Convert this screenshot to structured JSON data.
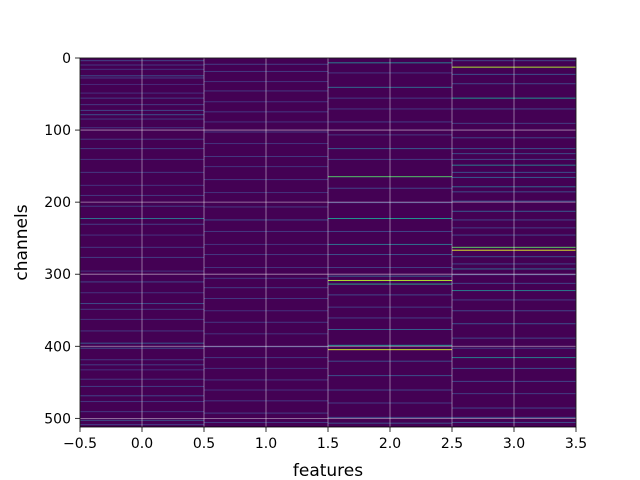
{
  "chart_data": {
    "type": "heatmap",
    "xlabel": "features",
    "ylabel": "channels",
    "xlim": [
      -0.5,
      3.5
    ],
    "ylim": [
      512,
      0
    ],
    "x_ticks": [
      "−0.5",
      "0.0",
      "0.5",
      "1.0",
      "1.5",
      "2.0",
      "2.5",
      "3.0",
      "3.5"
    ],
    "y_ticks": [
      "0",
      "100",
      "200",
      "300",
      "400",
      "500"
    ],
    "grid": true,
    "colormap": "viridis",
    "n_channels": 512,
    "columns": [
      {
        "feature": 0,
        "bright_rows": [
          [
            3,
            0.25
          ],
          [
            9,
            0.2
          ],
          [
            15,
            0.18
          ],
          [
            24,
            0.3
          ],
          [
            27,
            0.22
          ],
          [
            36,
            0.15
          ],
          [
            48,
            0.18
          ],
          [
            55,
            0.22
          ],
          [
            64,
            0.2
          ],
          [
            72,
            0.25
          ],
          [
            78,
            0.3
          ],
          [
            84,
            0.2
          ],
          [
            96,
            0.18
          ],
          [
            112,
            0.2
          ],
          [
            125,
            0.22
          ],
          [
            140,
            0.18
          ],
          [
            158,
            0.2
          ],
          [
            176,
            0.18
          ],
          [
            190,
            0.2
          ],
          [
            205,
            0.22
          ],
          [
            222,
            0.42
          ],
          [
            230,
            0.22
          ],
          [
            245,
            0.18
          ],
          [
            262,
            0.2
          ],
          [
            276,
            0.22
          ],
          [
            295,
            0.18
          ],
          [
            310,
            0.25
          ],
          [
            325,
            0.18
          ],
          [
            340,
            0.28
          ],
          [
            348,
            0.2
          ],
          [
            362,
            0.18
          ],
          [
            378,
            0.2
          ],
          [
            395,
            0.35
          ],
          [
            402,
            0.3
          ],
          [
            418,
            0.2
          ],
          [
            425,
            0.22
          ],
          [
            432,
            0.18
          ],
          [
            445,
            0.2
          ],
          [
            455,
            0.22
          ],
          [
            468,
            0.25
          ],
          [
            476,
            0.2
          ],
          [
            490,
            0.2
          ],
          [
            502,
            0.32
          ],
          [
            508,
            0.22
          ]
        ]
      },
      {
        "feature": 1,
        "bright_rows": [
          [
            8,
            0.22
          ],
          [
            18,
            0.2
          ],
          [
            32,
            0.18
          ],
          [
            45,
            0.2
          ],
          [
            60,
            0.18
          ],
          [
            74,
            0.2
          ],
          [
            88,
            0.18
          ],
          [
            102,
            0.2
          ],
          [
            118,
            0.18
          ],
          [
            136,
            0.2
          ],
          [
            150,
            0.18
          ],
          [
            168,
            0.2
          ],
          [
            186,
            0.18
          ],
          [
            206,
            0.2
          ],
          [
            224,
            0.28
          ],
          [
            240,
            0.2
          ],
          [
            258,
            0.18
          ],
          [
            272,
            0.2
          ],
          [
            290,
            0.18
          ],
          [
            305,
            0.2
          ],
          [
            318,
            0.22
          ],
          [
            333,
            0.2
          ],
          [
            350,
            0.18
          ],
          [
            366,
            0.2
          ],
          [
            382,
            0.18
          ],
          [
            400,
            0.22
          ],
          [
            415,
            0.2
          ],
          [
            430,
            0.18
          ],
          [
            446,
            0.2
          ],
          [
            460,
            0.18
          ],
          [
            475,
            0.2
          ],
          [
            492,
            0.22
          ],
          [
            505,
            0.22
          ]
        ]
      },
      {
        "feature": 2,
        "bright_rows": [
          [
            6,
            0.45
          ],
          [
            20,
            0.2
          ],
          [
            40,
            0.4
          ],
          [
            55,
            0.22
          ],
          [
            70,
            0.2
          ],
          [
            88,
            0.22
          ],
          [
            106,
            0.2
          ],
          [
            125,
            0.35
          ],
          [
            140,
            0.22
          ],
          [
            164,
            0.72
          ],
          [
            180,
            0.25
          ],
          [
            200,
            0.22
          ],
          [
            222,
            0.5
          ],
          [
            240,
            0.25
          ],
          [
            258,
            0.42
          ],
          [
            272,
            0.3
          ],
          [
            290,
            0.22
          ],
          [
            302,
            0.38
          ],
          [
            308,
            0.88
          ],
          [
            313,
            0.55
          ],
          [
            328,
            0.25
          ],
          [
            345,
            0.22
          ],
          [
            360,
            0.22
          ],
          [
            376,
            0.38
          ],
          [
            398,
            0.5
          ],
          [
            404,
            0.92
          ],
          [
            420,
            0.28
          ],
          [
            440,
            0.3
          ],
          [
            460,
            0.25
          ],
          [
            478,
            0.22
          ],
          [
            498,
            0.28
          ],
          [
            506,
            0.3
          ]
        ]
      },
      {
        "feature": 3,
        "bright_rows": [
          [
            3,
            0.25
          ],
          [
            12,
            0.88
          ],
          [
            22,
            0.3
          ],
          [
            35,
            0.25
          ],
          [
            55,
            0.5
          ],
          [
            70,
            0.25
          ],
          [
            90,
            0.22
          ],
          [
            110,
            0.25
          ],
          [
            125,
            0.3
          ],
          [
            132,
            0.28
          ],
          [
            140,
            0.25
          ],
          [
            148,
            0.45
          ],
          [
            158,
            0.3
          ],
          [
            165,
            0.35
          ],
          [
            178,
            0.4
          ],
          [
            185,
            0.28
          ],
          [
            198,
            0.3
          ],
          [
            212,
            0.35
          ],
          [
            224,
            0.25
          ],
          [
            235,
            0.22
          ],
          [
            245,
            0.25
          ],
          [
            262,
            0.75
          ],
          [
            266,
            0.95
          ],
          [
            275,
            0.3
          ],
          [
            285,
            0.25
          ],
          [
            292,
            0.4
          ],
          [
            300,
            0.25
          ],
          [
            312,
            0.25
          ],
          [
            322,
            0.45
          ],
          [
            335,
            0.22
          ],
          [
            350,
            0.25
          ],
          [
            368,
            0.3
          ],
          [
            388,
            0.25
          ],
          [
            402,
            0.22
          ],
          [
            415,
            0.45
          ],
          [
            430,
            0.3
          ],
          [
            448,
            0.25
          ],
          [
            465,
            0.22
          ],
          [
            485,
            0.25
          ],
          [
            498,
            0.3
          ],
          [
            505,
            0.28
          ]
        ]
      }
    ]
  }
}
